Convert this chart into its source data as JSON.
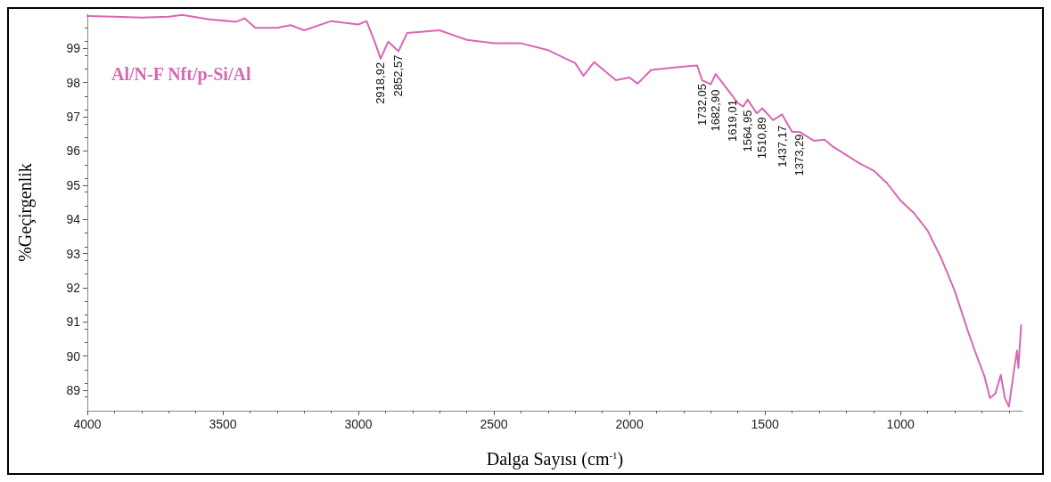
{
  "chart_data": {
    "type": "line",
    "xlabel": "Dalga Sayısı (cm$^{-1}$)",
    "ylabel": "%Geçirgenlik",
    "xlim": [
      4000,
      550
    ],
    "xticks": [
      4000,
      3500,
      3000,
      2500,
      2000,
      1500,
      1000
    ],
    "ylim": [
      88.4,
      100
    ],
    "yticks": [
      89,
      90,
      91,
      92,
      93,
      94,
      95,
      96,
      97,
      98,
      99
    ],
    "grid": false,
    "legend": "top left",
    "marker": "none",
    "x": [
      4000,
      3900,
      3800,
      3700,
      3650,
      3550,
      3450,
      3420,
      3380,
      3300,
      3250,
      3200,
      3100,
      3000,
      2970,
      2940,
      2918,
      2890,
      2852,
      2820,
      2700,
      2600,
      2500,
      2400,
      2300,
      2200,
      2170,
      2130,
      2050,
      2000,
      1970,
      1920,
      1800,
      1750,
      1732,
      1700,
      1682,
      1640,
      1600,
      1580,
      1564,
      1530,
      1510,
      1470,
      1437,
      1400,
      1373,
      1320,
      1280,
      1250,
      1150,
      1100,
      1050,
      1000,
      950,
      900,
      850,
      800,
      750,
      720,
      690,
      670,
      650,
      630,
      615,
      600,
      580,
      570,
      565,
      555
    ],
    "series": [
      {
        "name": "Al/N-F Nft/p-Si/Al",
        "color": "#d966b4",
        "values": [
          99.95,
          99.93,
          99.9,
          99.93,
          99.98,
          99.85,
          99.78,
          99.88,
          99.6,
          99.6,
          99.68,
          99.53,
          99.8,
          99.7,
          99.8,
          99.2,
          98.7,
          99.2,
          98.92,
          99.45,
          99.53,
          99.25,
          99.15,
          99.15,
          98.95,
          98.57,
          98.2,
          98.6,
          98.07,
          98.15,
          97.97,
          98.37,
          98.47,
          98.5,
          98.07,
          97.95,
          98.25,
          97.82,
          97.4,
          97.3,
          97.5,
          97.1,
          97.25,
          96.9,
          97.07,
          96.56,
          96.56,
          96.3,
          96.33,
          96.13,
          95.63,
          95.43,
          95.06,
          94.55,
          94.18,
          93.67,
          92.87,
          91.91,
          90.7,
          90.03,
          89.4,
          88.77,
          88.9,
          89.45,
          88.77,
          88.52,
          89.65,
          90.16,
          89.65,
          90.9
        ]
      }
    ],
    "annotations": [
      {
        "text": "2918,92",
        "x": 2918.92,
        "y": 98.7
      },
      {
        "text": "2852,57",
        "x": 2852.57,
        "y": 98.92
      },
      {
        "text": "1732,05",
        "x": 1732.05,
        "y": 98.07
      },
      {
        "text": "1682,90",
        "x": 1682.9,
        "y": 97.9
      },
      {
        "text": "1619,01",
        "x": 1619.01,
        "y": 97.6
      },
      {
        "text": "1564,95",
        "x": 1564.95,
        "y": 97.3
      },
      {
        "text": "1510,89",
        "x": 1510.89,
        "y": 97.1
      },
      {
        "text": "1437,17",
        "x": 1437.17,
        "y": 96.85
      },
      {
        "text": "1373,29",
        "x": 1373.29,
        "y": 96.6
      }
    ]
  }
}
